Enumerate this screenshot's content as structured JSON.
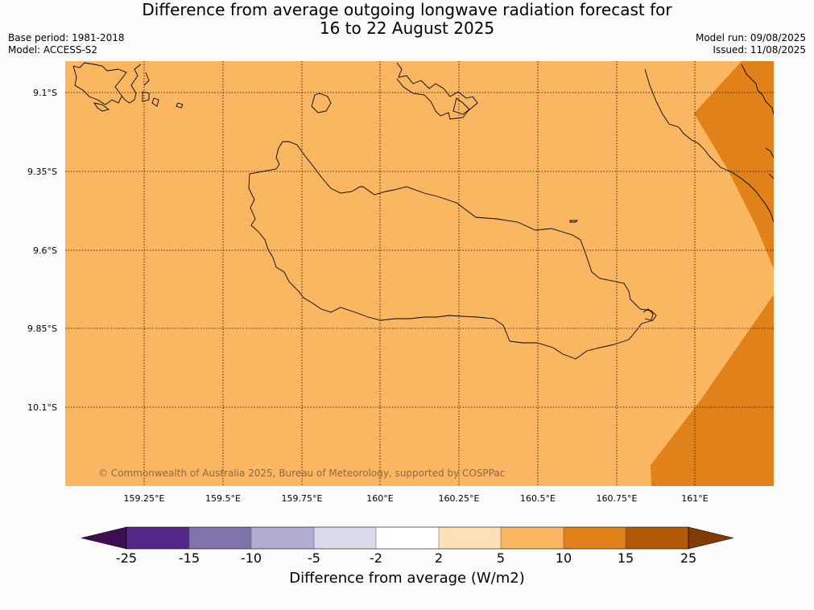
{
  "title_line1": "Difference from average outgoing longwave radiation forecast for",
  "title_line2": "16 to 22 August 2025",
  "base_period": "Base period: 1981-2018",
  "model": "Model: ACCESS-S2",
  "model_run": "Model run: 09/08/2025",
  "issued": "Issued: 11/08/2025",
  "copyright": "© Commonwealth of Australia 2025, Bureau of Meteorology, supported by COSPPac",
  "map": {
    "lat_labels": [
      "9.1°S",
      "9.35°S",
      "9.6°S",
      "9.85°S",
      "10.1°S"
    ],
    "lon_labels": [
      "159.25°E",
      "159.5°E",
      "159.75°E",
      "160°E",
      "160.25°E",
      "160.5°E",
      "160.75°E",
      "161°E"
    ],
    "background_color": "#fbb662",
    "anomaly_color": "#e08219"
  },
  "colorbar": {
    "title": "Difference from average (W/m2)",
    "tick_labels": [
      "-25",
      "-15",
      "-10",
      "-5",
      "-2",
      "2",
      "5",
      "10",
      "15",
      "25"
    ],
    "colors": [
      "#3b0f52",
      "#542889",
      "#8073ac",
      "#b2abd2",
      "#d8daeb",
      "#ffffff",
      "#fee0b6",
      "#fbb662",
      "#e08219",
      "#b35806",
      "#7f3b08"
    ]
  }
}
